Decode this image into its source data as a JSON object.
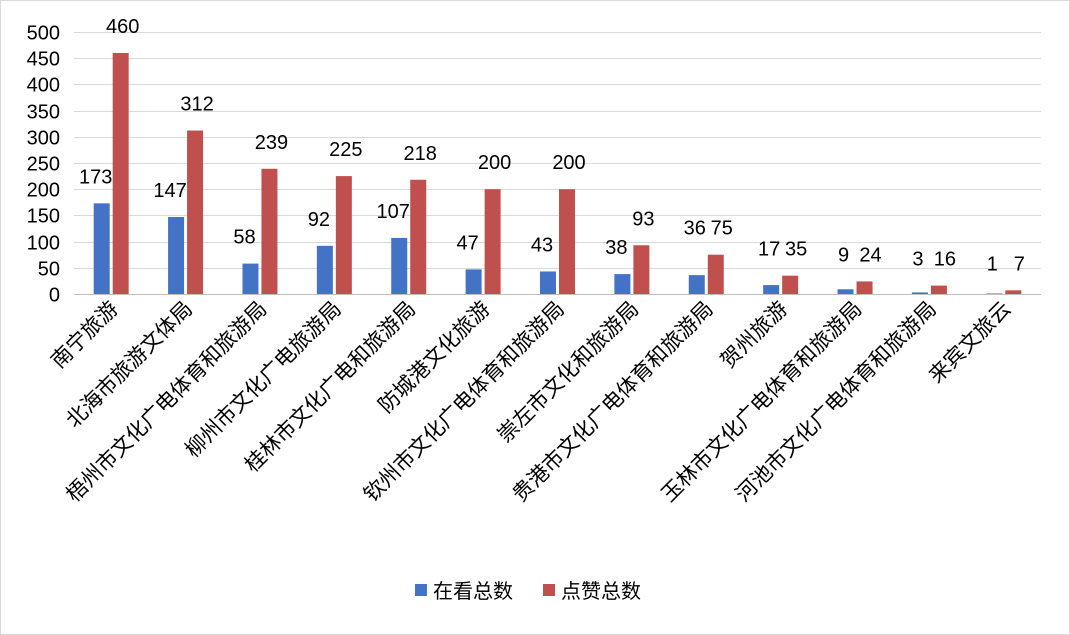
{
  "chart_data": {
    "type": "bar",
    "categories": [
      "南宁旅游",
      "北海市旅游文体局",
      "梧州市文化广电体育和旅游局",
      "柳州市文化广电旅游局",
      "桂林市文化广电和旅游局",
      "防城港文化旅游",
      "钦州市文化广电体育和旅游局",
      "崇左市文化和旅游局",
      "贵港市文化广电体育和旅游局",
      "贺州旅游",
      "玉林市文化广电体育和旅游局",
      "河池市文化广电体育和旅游局",
      "来宾文旅云"
    ],
    "series": [
      {
        "name": "在看总数",
        "color": "#4472c4",
        "values": [
          173,
          147,
          58,
          92,
          107,
          47,
          43,
          38,
          36,
          17,
          9,
          3,
          1
        ]
      },
      {
        "name": "点赞总数",
        "color": "#c0504d",
        "values": [
          460,
          312,
          239,
          225,
          218,
          200,
          200,
          93,
          75,
          35,
          24,
          16,
          7
        ]
      }
    ],
    "ylim": [
      0,
      500
    ],
    "yticks": [
      0,
      50,
      100,
      150,
      200,
      250,
      300,
      350,
      400,
      450,
      500
    ],
    "grid": true,
    "data_labels": true,
    "legend": "bottom",
    "title": "",
    "xlabel": "",
    "ylabel": ""
  }
}
